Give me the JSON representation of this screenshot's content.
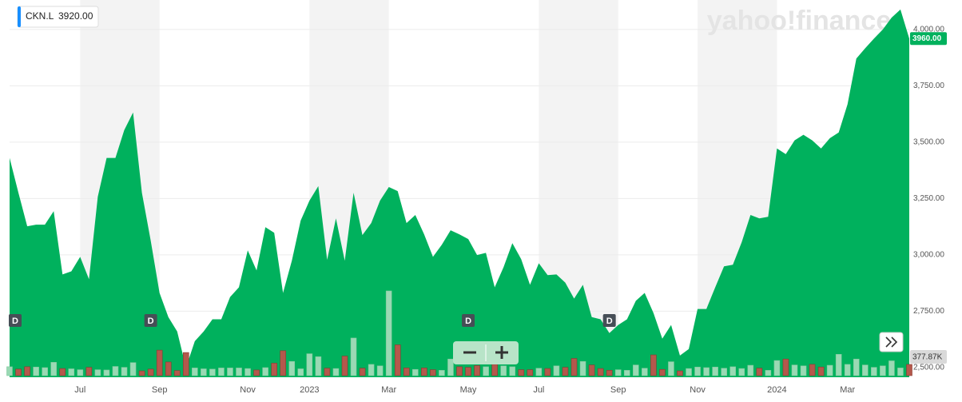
{
  "chart_data": {
    "type": "area",
    "watermark": "yahoo!finance",
    "quote": {
      "symbol": "CKN.L",
      "price": {
        "value": 3920,
        "label": "3920.00"
      }
    },
    "last_price": {
      "value": 3960,
      "label": "3960.00"
    },
    "last_volume": {
      "value": 377870,
      "label": "377.87K"
    },
    "categories": [
      null,
      null,
      null,
      null,
      null,
      null,
      null,
      null,
      "Jul",
      null,
      null,
      null,
      null,
      null,
      null,
      null,
      null,
      "Sep",
      null,
      null,
      null,
      null,
      null,
      null,
      null,
      null,
      null,
      "Nov",
      null,
      null,
      null,
      null,
      null,
      null,
      "2023",
      null,
      null,
      null,
      null,
      null,
      null,
      null,
      null,
      "Mar",
      null,
      null,
      null,
      null,
      null,
      null,
      null,
      null,
      "May",
      null,
      null,
      null,
      null,
      null,
      null,
      null,
      "Jul",
      null,
      null,
      null,
      null,
      null,
      null,
      null,
      null,
      "Sep",
      null,
      null,
      null,
      null,
      null,
      null,
      null,
      null,
      "Nov",
      null,
      null,
      null,
      null,
      null,
      null,
      null,
      null,
      "2024",
      null,
      null,
      null,
      null,
      null,
      null,
      null,
      "Mar",
      null,
      null,
      null,
      null,
      null,
      null,
      null
    ],
    "dividends": [
      "D",
      null,
      null,
      null,
      null,
      null,
      null,
      null,
      null,
      null,
      null,
      null,
      null,
      null,
      null,
      null,
      "D",
      null,
      null,
      null,
      null,
      null,
      null,
      null,
      null,
      null,
      null,
      null,
      null,
      null,
      null,
      null,
      null,
      null,
      null,
      null,
      null,
      null,
      null,
      null,
      null,
      null,
      null,
      null,
      null,
      null,
      null,
      null,
      null,
      null,
      null,
      null,
      "D",
      null,
      null,
      null,
      null,
      null,
      null,
      null,
      null,
      null,
      null,
      null,
      null,
      null,
      null,
      null,
      "D",
      null,
      null,
      null,
      null,
      null,
      null,
      null,
      null,
      null,
      null,
      null,
      null,
      null,
      null,
      null,
      null,
      null,
      null,
      null,
      null,
      null,
      null,
      null,
      null,
      null,
      null,
      null,
      null,
      null,
      null,
      null,
      null,
      null,
      null
    ],
    "series": [
      {
        "name": "CKN.L",
        "color": "#00b15d",
        "values": [
          3430,
          3276,
          3127,
          3134,
          3134,
          3194,
          2913,
          2927,
          2991,
          2892,
          3258,
          3430,
          3430,
          3554,
          3632,
          3276,
          3063,
          2831,
          2724,
          2660,
          2500,
          2617,
          2660,
          2714,
          2714,
          2813,
          2856,
          3020,
          2931,
          3123,
          3098,
          2831,
          2974,
          3152,
          3241,
          3305,
          2978,
          3162,
          2974,
          3276,
          3088,
          3141,
          3241,
          3301,
          3283,
          3141,
          3177,
          3091,
          2991,
          3045,
          3109,
          3091,
          3070,
          2999,
          3009,
          2856,
          2945,
          3052,
          2981,
          2867,
          2963,
          2910,
          2913,
          2877,
          2806,
          2867,
          2724,
          2714,
          2653,
          2689,
          2714,
          2796,
          2831,
          2742,
          2628,
          2689,
          2553,
          2582,
          2760,
          2760,
          2856,
          2949,
          2956,
          3056,
          3177,
          3162,
          3169,
          3472,
          3447,
          3508,
          3533,
          3508,
          3472,
          3518,
          3543,
          3668,
          3871,
          3917,
          3960,
          4000,
          4053,
          4089,
          3960
        ]
      },
      {
        "name": "Volume",
        "up_color": "#9ad9b4",
        "down_color": "#b4584c",
        "values": [
          300000,
          220000,
          300000,
          290000,
          270000,
          450000,
          240000,
          230000,
          200000,
          280000,
          200000,
          190000,
          310000,
          280000,
          440000,
          160000,
          220000,
          860000,
          460000,
          170000,
          780000,
          260000,
          230000,
          220000,
          260000,
          260000,
          260000,
          240000,
          190000,
          270000,
          420000,
          840000,
          480000,
          230000,
          740000,
          640000,
          250000,
          240000,
          660000,
          1270000,
          250000,
          380000,
          330000,
          2860000,
          1040000,
          260000,
          210000,
          260000,
          200000,
          180000,
          560000,
          300000,
          280000,
          340000,
          300000,
          380000,
          330000,
          300000,
          200000,
          200000,
          250000,
          240000,
          330000,
          280000,
          580000,
          480000,
          360000,
          240000,
          180000,
          200000,
          180000,
          360000,
          250000,
          700000,
          210000,
          470000,
          160000,
          240000,
          290000,
          270000,
          290000,
          250000,
          300000,
          240000,
          350000,
          250000,
          180000,
          510000,
          560000,
          360000,
          330000,
          380000,
          290000,
          350000,
          720000,
          380000,
          560000,
          360000,
          280000,
          330000,
          500000,
          260000,
          377870
        ]
      }
    ],
    "ylim": [
      2457,
      4131
    ],
    "yticks": [
      {
        "value": 2500,
        "label": "2,500.00"
      },
      {
        "value": 2750,
        "label": "2,750.00"
      },
      {
        "value": 3000,
        "label": "3,000.00"
      },
      {
        "value": 3250,
        "label": "3,250.00"
      },
      {
        "value": 3500,
        "label": "3,500.00"
      },
      {
        "value": 3750,
        "label": "3,750.00"
      },
      {
        "value": 4000,
        "label": "4,000.00"
      }
    ],
    "grid": true
  }
}
